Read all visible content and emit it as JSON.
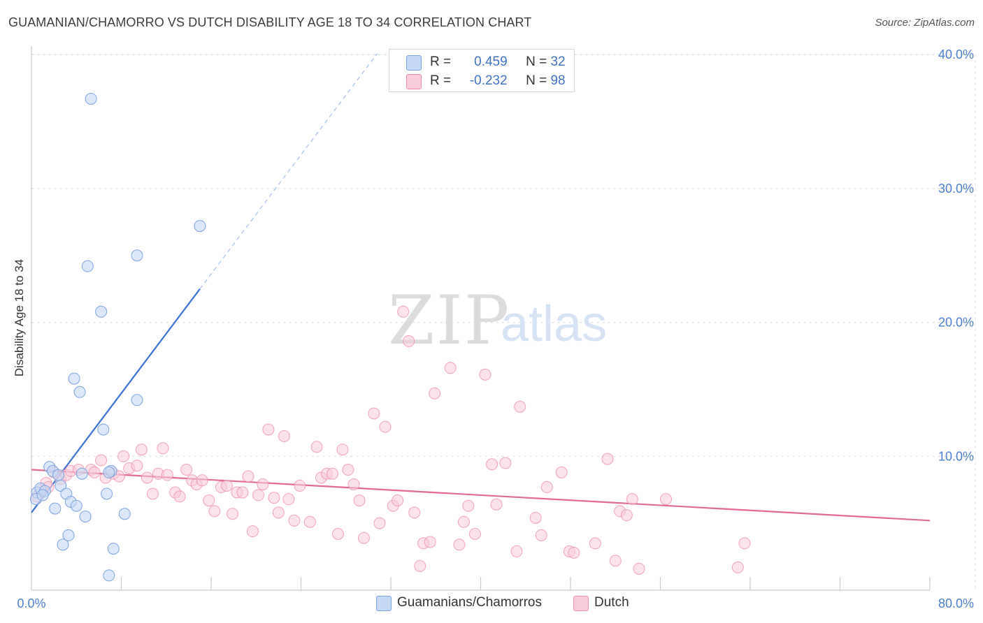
{
  "chart_title": "GUAMANIAN/CHAMORRO VS DUTCH DISABILITY AGE 18 TO 34 CORRELATION CHART",
  "source": "Source: ZipAtlas.com",
  "watermark": {
    "zip": "ZIP",
    "atlas": "atlas"
  },
  "legend": {
    "r_label": "R =",
    "n_label": "N =",
    "entries": [
      {
        "r": "0.459",
        "n": "32"
      },
      {
        "r": "-0.232",
        "n": "98"
      }
    ]
  },
  "colors": {
    "blue_fill": "#c5d9f5",
    "blue_stroke": "#7aa3e0",
    "blue_line": "#3a74d0",
    "pink_fill": "#f9ccd9",
    "pink_stroke": "#ee8fad",
    "pink_line": "#e26994",
    "tick_text": "#4a7fcf",
    "grid": "#dddddd"
  },
  "chart_data": {
    "type": "scatter",
    "xlabel": "",
    "ylabel": "Disability Age 18 to 34",
    "xlim": [
      0,
      80
    ],
    "ylim": [
      0,
      40.5
    ],
    "x_tick_labels": [
      "0.0%",
      "80.0%"
    ],
    "y_ticks": [
      10,
      20,
      30,
      40
    ],
    "y_tick_labels": [
      "10.0%",
      "20.0%",
      "30.0%",
      "40.0%"
    ],
    "grid": true,
    "legend_position": "top-center",
    "series": [
      {
        "name": "Guamanians/Chamorros",
        "color": "#7aa3e0",
        "trend": {
          "x": [
            0,
            15
          ],
          "y": [
            5.8,
            22.5
          ],
          "dashed_to_x": 30.8
        },
        "points": [
          [
            0.5,
            7.3
          ],
          [
            0.8,
            7.6
          ],
          [
            1.2,
            7.4
          ],
          [
            1.6,
            9.2
          ],
          [
            1.9,
            8.9
          ],
          [
            2.1,
            6.1
          ],
          [
            2.4,
            8.6
          ],
          [
            2.6,
            7.8
          ],
          [
            2.8,
            3.4
          ],
          [
            3.1,
            7.2
          ],
          [
            3.3,
            4.1
          ],
          [
            3.5,
            6.6
          ],
          [
            3.8,
            15.8
          ],
          [
            4.0,
            6.3
          ],
          [
            4.3,
            14.8
          ],
          [
            4.5,
            8.7
          ],
          [
            4.8,
            5.5
          ],
          [
            5.0,
            24.2
          ],
          [
            5.3,
            36.7
          ],
          [
            6.2,
            20.8
          ],
          [
            6.4,
            12.0
          ],
          [
            6.7,
            7.2
          ],
          [
            6.9,
            1.1
          ],
          [
            7.1,
            8.9
          ],
          [
            7.3,
            3.1
          ],
          [
            8.3,
            5.7
          ],
          [
            9.4,
            25.0
          ],
          [
            9.4,
            14.2
          ],
          [
            15.0,
            27.2
          ],
          [
            0.4,
            6.8
          ],
          [
            1.0,
            7.1
          ],
          [
            6.9,
            8.8
          ]
        ]
      },
      {
        "name": "Dutch",
        "color": "#ee8fad",
        "trend": {
          "x": [
            0,
            80
          ],
          "y": [
            9.0,
            5.2
          ]
        },
        "points": [
          [
            0.5,
            7.0
          ],
          [
            0.9,
            7.5
          ],
          [
            1.3,
            8.0
          ],
          [
            1.5,
            7.7
          ],
          [
            2.0,
            8.8
          ],
          [
            2.6,
            8.3
          ],
          [
            3.1,
            8.6
          ],
          [
            3.5,
            8.9
          ],
          [
            4.2,
            9.0
          ],
          [
            5.3,
            9.0
          ],
          [
            5.6,
            8.8
          ],
          [
            6.2,
            9.7
          ],
          [
            6.6,
            8.4
          ],
          [
            7.3,
            8.7
          ],
          [
            7.8,
            8.5
          ],
          [
            8.2,
            10.0
          ],
          [
            8.7,
            9.1
          ],
          [
            9.4,
            9.3
          ],
          [
            9.8,
            10.5
          ],
          [
            10.3,
            8.4
          ],
          [
            10.8,
            7.2
          ],
          [
            11.3,
            8.7
          ],
          [
            11.7,
            10.6
          ],
          [
            12.1,
            8.6
          ],
          [
            12.8,
            7.3
          ],
          [
            13.2,
            7.0
          ],
          [
            13.8,
            9.0
          ],
          [
            14.3,
            8.2
          ],
          [
            14.7,
            7.9
          ],
          [
            15.2,
            8.2
          ],
          [
            15.8,
            6.7
          ],
          [
            16.3,
            5.9
          ],
          [
            16.9,
            7.7
          ],
          [
            17.4,
            7.8
          ],
          [
            17.9,
            5.7
          ],
          [
            18.3,
            7.3
          ],
          [
            18.8,
            7.3
          ],
          [
            19.3,
            8.5
          ],
          [
            19.7,
            4.4
          ],
          [
            20.2,
            7.1
          ],
          [
            20.6,
            7.9
          ],
          [
            21.1,
            12.0
          ],
          [
            21.6,
            6.9
          ],
          [
            22.0,
            5.8
          ],
          [
            22.5,
            11.5
          ],
          [
            22.9,
            6.8
          ],
          [
            23.4,
            5.2
          ],
          [
            23.9,
            7.8
          ],
          [
            24.8,
            5.1
          ],
          [
            25.4,
            10.7
          ],
          [
            25.8,
            8.4
          ],
          [
            26.3,
            8.7
          ],
          [
            26.8,
            8.7
          ],
          [
            27.3,
            4.2
          ],
          [
            27.7,
            10.5
          ],
          [
            28.2,
            9.0
          ],
          [
            28.7,
            7.9
          ],
          [
            29.2,
            6.7
          ],
          [
            29.6,
            3.9
          ],
          [
            30.5,
            13.2
          ],
          [
            31.0,
            5.0
          ],
          [
            31.5,
            12.2
          ],
          [
            32.2,
            6.3
          ],
          [
            32.6,
            6.7
          ],
          [
            33.1,
            20.8
          ],
          [
            33.6,
            18.6
          ],
          [
            34.1,
            5.8
          ],
          [
            34.6,
            1.8
          ],
          [
            34.9,
            3.5
          ],
          [
            35.5,
            3.6
          ],
          [
            35.9,
            14.7
          ],
          [
            37.3,
            16.6
          ],
          [
            38.1,
            3.4
          ],
          [
            38.5,
            5.1
          ],
          [
            38.9,
            6.3
          ],
          [
            39.5,
            4.2
          ],
          [
            40.4,
            16.1
          ],
          [
            41.0,
            9.4
          ],
          [
            41.4,
            6.4
          ],
          [
            42.2,
            9.5
          ],
          [
            43.2,
            2.9
          ],
          [
            43.5,
            13.7
          ],
          [
            44.9,
            5.4
          ],
          [
            45.4,
            4.1
          ],
          [
            45.9,
            7.7
          ],
          [
            47.2,
            8.8
          ],
          [
            47.9,
            2.9
          ],
          [
            48.3,
            2.8
          ],
          [
            50.2,
            3.5
          ],
          [
            51.3,
            9.8
          ],
          [
            52.0,
            2.2
          ],
          [
            52.4,
            5.9
          ],
          [
            53.0,
            5.6
          ],
          [
            53.5,
            6.8
          ],
          [
            54.1,
            1.6
          ],
          [
            56.5,
            6.8
          ],
          [
            62.9,
            1.7
          ],
          [
            63.5,
            3.5
          ]
        ]
      }
    ]
  }
}
